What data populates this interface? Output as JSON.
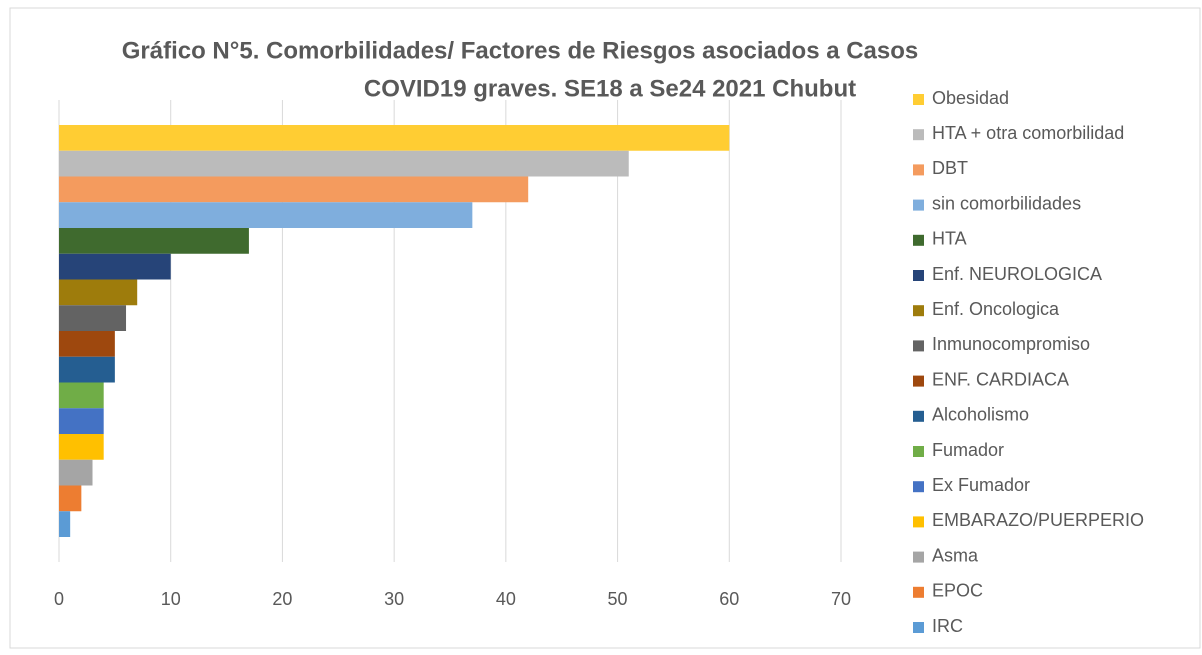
{
  "chart_data": {
    "type": "bar",
    "orientation": "horizontal",
    "title": [
      "Gráfico N°5. Comorbilidades/ Factores de Riesgos asociados a Casos",
      "COVID19 graves.  SE18 a Se24  2021 Chubut"
    ],
    "series": [
      {
        "name": "Obesidad",
        "color": "#FFCD33",
        "values": [
          60
        ]
      },
      {
        "name": "HTA + otra comorbilidad",
        "color": "#BBBBBB",
        "values": [
          51
        ]
      },
      {
        "name": "DBT",
        "color": "#F49B5E",
        "values": [
          42
        ]
      },
      {
        "name": "sin comorbilidades",
        "color": "#7FAEDD",
        "values": [
          37
        ]
      },
      {
        "name": "HTA",
        "color": "#3F6A2E",
        "values": [
          17
        ]
      },
      {
        "name": "Enf. NEUROLOGICA",
        "color": "#264478",
        "values": [
          10
        ]
      },
      {
        "name": "Enf. Oncologica",
        "color": "#9E7C0C",
        "values": [
          7
        ]
      },
      {
        "name": "Inmunocompromiso",
        "color": "#636363",
        "values": [
          6
        ]
      },
      {
        "name": "ENF. CARDIACA",
        "color": "#9E480E",
        "values": [
          5
        ]
      },
      {
        "name": "Alcoholismo",
        "color": "#255E91",
        "values": [
          5
        ]
      },
      {
        "name": "Fumador",
        "color": "#70AD47",
        "values": [
          4
        ]
      },
      {
        "name": "Ex Fumador",
        "color": "#4472C4",
        "values": [
          4
        ]
      },
      {
        "name": "EMBARAZO/PUERPERIO",
        "color": "#FFC000",
        "values": [
          4
        ]
      },
      {
        "name": "Asma",
        "color": "#A5A5A5",
        "values": [
          3
        ]
      },
      {
        "name": "EPOC",
        "color": "#ED7D31",
        "values": [
          2
        ]
      },
      {
        "name": "IRC",
        "color": "#5B9BD5",
        "values": [
          1
        ]
      }
    ],
    "xlim": [
      0,
      70
    ],
    "xticks": [
      0,
      10,
      20,
      30,
      40,
      50,
      60,
      70
    ],
    "grid": true,
    "legend": "right"
  }
}
